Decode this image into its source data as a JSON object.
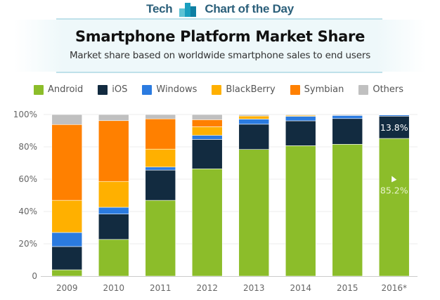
{
  "brand": {
    "left_text": "Tech",
    "right_text": "Chart of the Day",
    "logo_icon": "bar-chart-logo-icon"
  },
  "header": {
    "title": "Smartphone Platform Market Share",
    "subtitle": "Market share based on worldwide smartphone sales to end users"
  },
  "chart_data": {
    "type": "bar",
    "stacked": true,
    "title": "Smartphone Platform Market Share",
    "subtitle": "Market share based on worldwide smartphone sales to end users",
    "xlabel": "",
    "ylabel": "",
    "ylim": [
      0,
      100
    ],
    "yticks": [
      0,
      20,
      40,
      60,
      80,
      100
    ],
    "ytick_labels": [
      "0",
      "20%",
      "40%",
      "60%",
      "80%",
      "100%"
    ],
    "categories": [
      "2009",
      "2010",
      "2011",
      "2012",
      "2013",
      "2014",
      "2015",
      "2016*"
    ],
    "grid": true,
    "legend_position": "top",
    "series": [
      {
        "name": "Android",
        "color": "#8cbd2a",
        "values": [
          3.9,
          22.7,
          46.9,
          66.4,
          78.4,
          80.7,
          81.6,
          85.2
        ]
      },
      {
        "name": "iOS",
        "color": "#122b40",
        "values": [
          14.4,
          15.7,
          18.7,
          18.2,
          15.6,
          15.4,
          15.9,
          13.8
        ]
      },
      {
        "name": "Windows",
        "color": "#2b7be0",
        "values": [
          8.7,
          4.2,
          1.9,
          2.5,
          3.2,
          2.8,
          1.9,
          0.7
        ]
      },
      {
        "name": "BlackBerry",
        "color": "#ffb000",
        "values": [
          19.9,
          16.0,
          11.1,
          5.3,
          1.9,
          0.6,
          0.0,
          0.0
        ]
      },
      {
        "name": "Symbian",
        "color": "#ff8000",
        "values": [
          46.9,
          37.6,
          18.7,
          4.4,
          0.0,
          0.0,
          0.0,
          0.0
        ]
      },
      {
        "name": "Others",
        "color": "#c0c0c0",
        "values": [
          6.2,
          3.8,
          2.7,
          3.2,
          0.9,
          0.5,
          0.6,
          0.3
        ]
      }
    ],
    "annotations": [
      {
        "category": "2016*",
        "series": "iOS",
        "text": "13.8%"
      },
      {
        "category": "2016*",
        "series": "Android",
        "text": "85.2%"
      }
    ]
  }
}
